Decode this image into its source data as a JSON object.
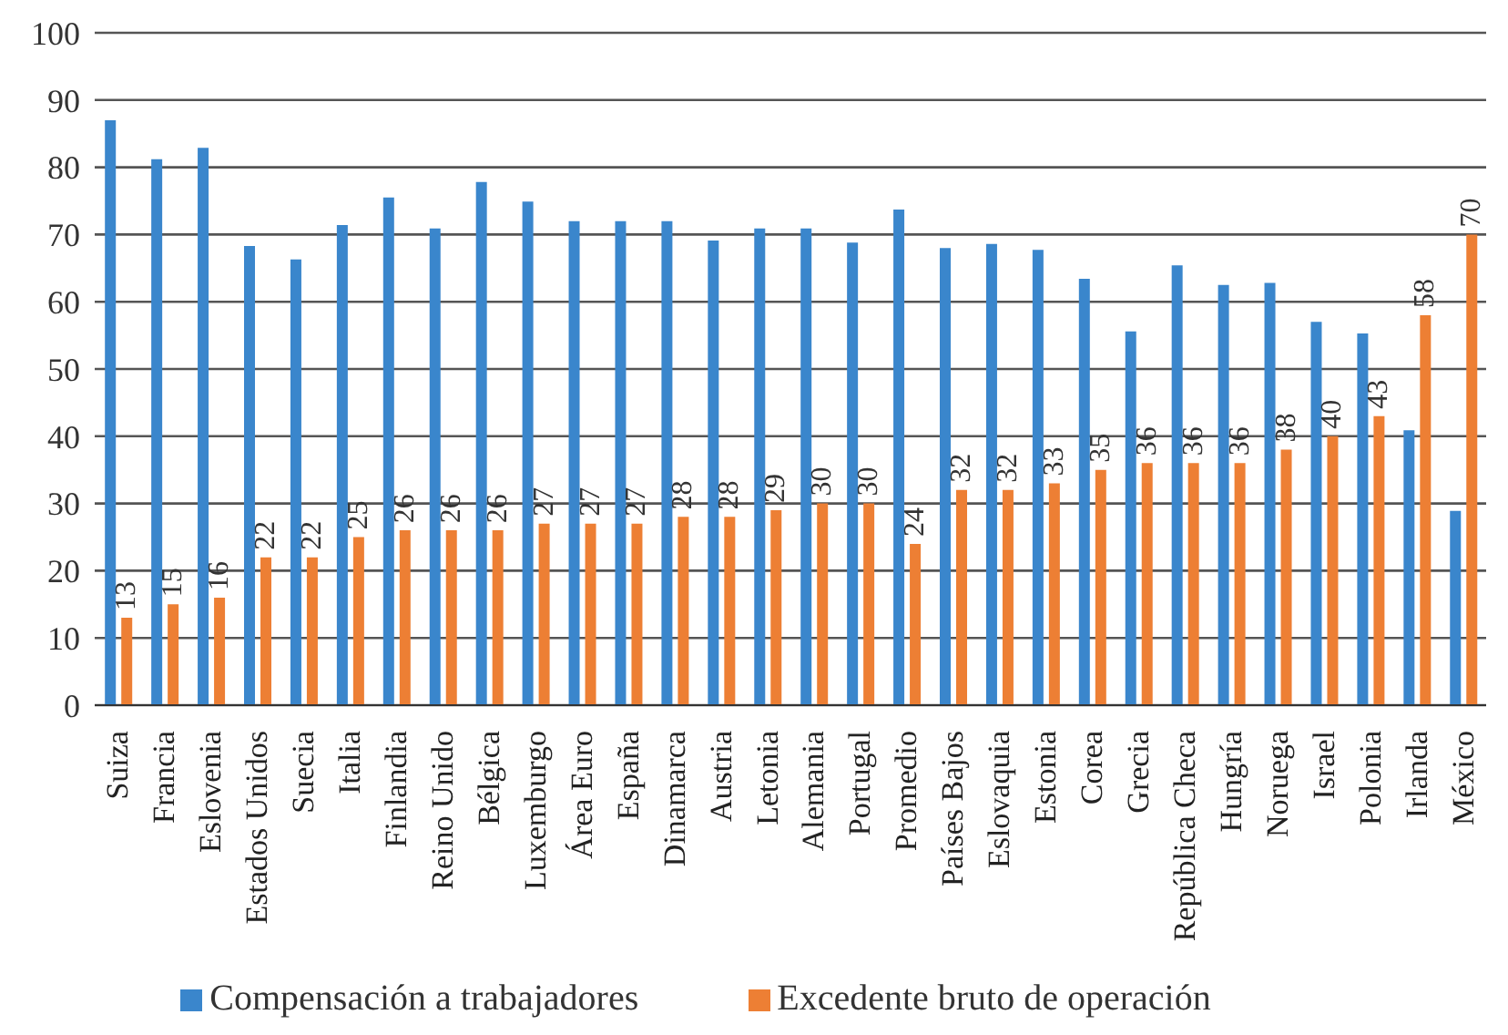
{
  "chart_data": {
    "type": "bar",
    "categories": [
      "Suiza",
      "Francia",
      "Eslovenia",
      "Estados Unidos",
      "Suecia",
      "Italia",
      "Finlandia",
      "Reino Unido",
      "Bélgica",
      "Luxemburgo",
      "Área Euro",
      "España",
      "Dinamarca",
      "Austria",
      "Letonia",
      "Alemania",
      "Portugal",
      "Promedio",
      "Países Bajos",
      "Eslovaquia",
      "Estonia",
      "Corea",
      "Grecia",
      "República Checa",
      "Hungría",
      "Noruega",
      "Israel",
      "Polonia",
      "Irlanda",
      "México"
    ],
    "series": [
      {
        "name": "Compensación a trabajadores",
        "color": "#3a86cc",
        "values": [
          87.0,
          81.2,
          82.9,
          68.3,
          66.3,
          71.4,
          75.5,
          70.9,
          77.8,
          74.9,
          72.0,
          72.0,
          72.0,
          69.1,
          70.9,
          70.9,
          68.8,
          73.7,
          68.0,
          68.6,
          67.7,
          63.4,
          55.6,
          65.4,
          62.5,
          62.8,
          57.0,
          55.3,
          40.9,
          28.9
        ]
      },
      {
        "name": "Excedente bruto de operación",
        "color": "#ed7f34",
        "values": [
          13,
          15,
          16,
          22,
          22,
          25,
          26,
          26,
          26,
          27,
          27,
          27,
          28,
          28,
          29,
          30,
          30,
          24,
          32,
          32,
          33,
          35,
          36,
          36,
          36,
          38,
          40,
          43,
          58,
          70
        ],
        "value_labels": [
          "13",
          "15",
          "16",
          "22",
          "22",
          "25",
          "26",
          "26",
          "26",
          "27",
          "27",
          "27",
          "28",
          "28",
          "29",
          "30",
          "30",
          "24",
          "32",
          "32",
          "33",
          "35",
          "36",
          "36",
          "36",
          "38",
          "40",
          "43",
          "58",
          "70"
        ]
      }
    ],
    "ylim": [
      0,
      100
    ],
    "yticks": [
      0,
      10,
      20,
      30,
      40,
      50,
      60,
      70,
      80,
      90,
      100
    ],
    "grid": "y",
    "legend": "bottom"
  }
}
